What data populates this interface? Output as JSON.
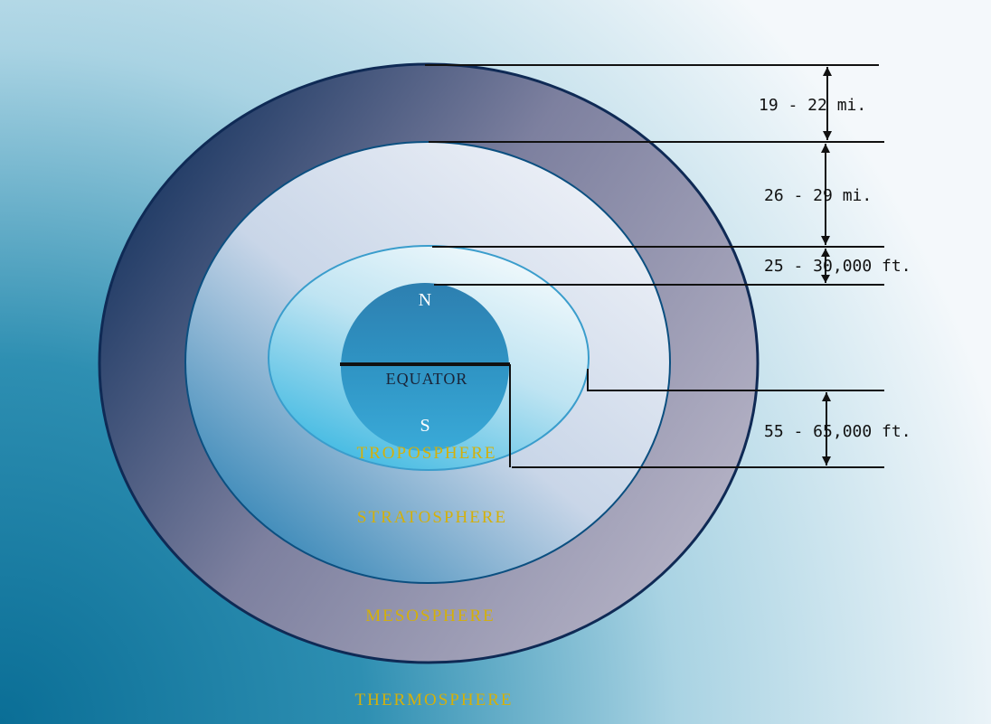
{
  "diagram": {
    "layers": {
      "troposphere": "TROPOSPHERE",
      "stratosphere": "STRATOSPHERE",
      "mesosphere": "MESOSPHERE",
      "thermosphere": "THERMOSPHERE"
    },
    "earth": {
      "north": "N",
      "south": "S",
      "equator": "EQUATOR"
    },
    "dimensions": {
      "mesosphere_thickness": "19 - 22 mi.",
      "stratosphere_thickness": "26 - 29 mi.",
      "troposphere_polar": "25 - 30,000 ft.",
      "troposphere_equator": "55 - 65,000 ft."
    },
    "colors": {
      "background": "#ffffff",
      "label_gold": "#d4b00a",
      "outer_ring": "#9a98b4",
      "outline": "#0f2a55"
    }
  }
}
